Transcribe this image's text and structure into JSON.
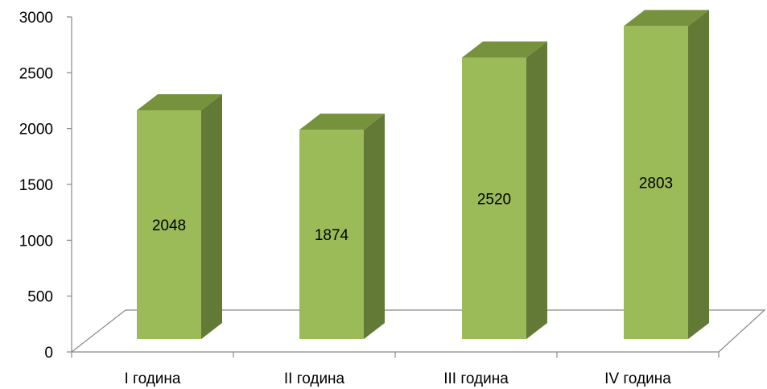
{
  "chart_data": {
    "type": "bar",
    "style": "3d-column",
    "categories": [
      "I година",
      "II година",
      "III година",
      "IV година"
    ],
    "values": [
      2048,
      1874,
      2520,
      2803
    ],
    "data_labels": [
      "2048",
      "1874",
      "2520",
      "2803"
    ],
    "ylim": [
      0,
      3000
    ],
    "yticks": [
      0,
      500,
      1000,
      1500,
      2000,
      2500,
      3000
    ],
    "ytick_labels": [
      "0",
      "500",
      "1000",
      "1500",
      "2000",
      "2500",
      "3000"
    ],
    "grid": false,
    "legend": "none",
    "title": "",
    "xlabel": "",
    "ylabel": "",
    "colors": {
      "bar_front": "#9BBB59",
      "bar_top": "#76923C",
      "bar_side": "#627A35",
      "axis": "#898989"
    }
  }
}
